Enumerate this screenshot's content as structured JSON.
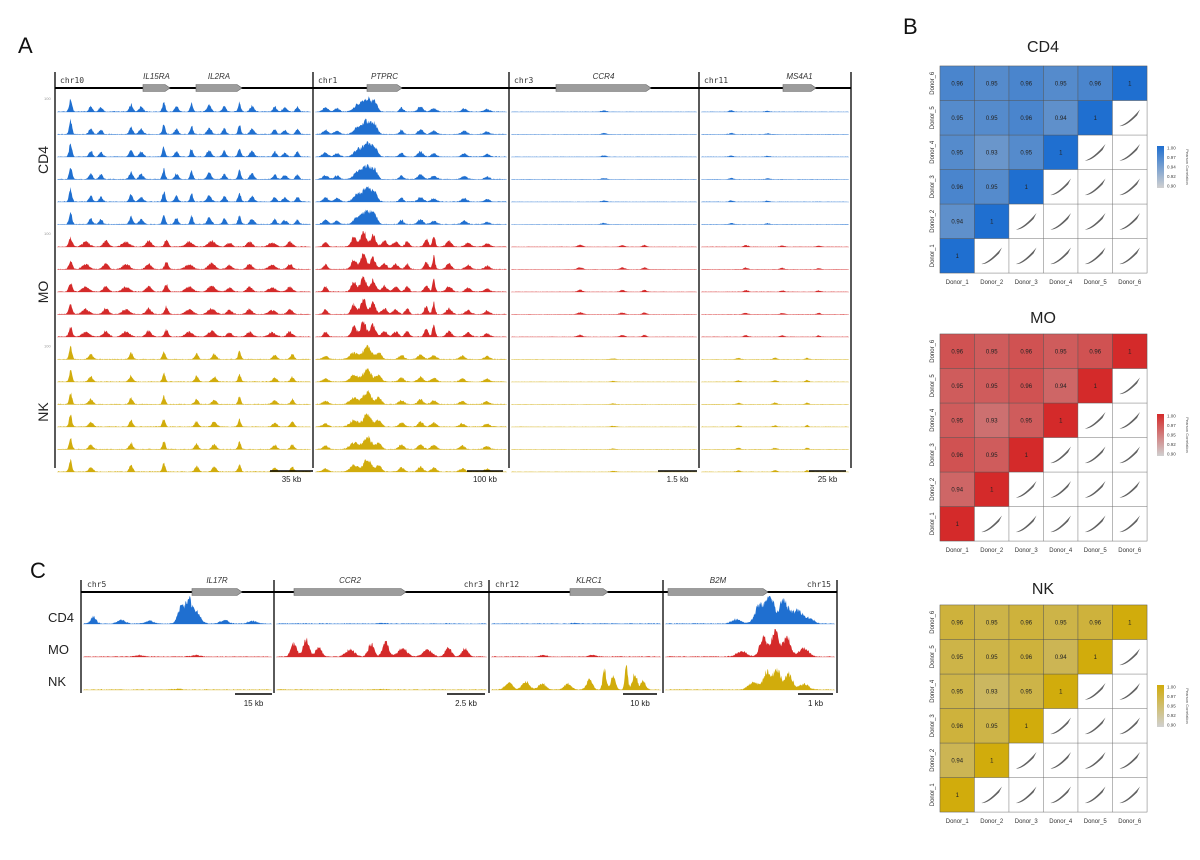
{
  "panel_letters": {
    "a": "A",
    "b": "B",
    "c": "C"
  },
  "colors": {
    "CD4": "#1f6fd0",
    "MO": "#d42a2a",
    "NK": "#d1ac0c",
    "track_line": "#000000",
    "gene_body": "#9c9c9c"
  },
  "panel_a": {
    "row_groups": [
      {
        "label": "CD4",
        "color_key": "CD4",
        "n_tracks": 6
      },
      {
        "label": "MO",
        "color_key": "MO",
        "n_tracks": 5
      },
      {
        "label": "NK",
        "color_key": "NK",
        "n_tracks": 6
      }
    ],
    "tiny_scale_label": "100",
    "loci": [
      {
        "chr": "chr10",
        "genes": [
          "IL15RA",
          "IL2RA"
        ],
        "scale_bar": "35 kb"
      },
      {
        "chr": "chr1",
        "genes": [
          "PTPRC"
        ],
        "scale_bar": "100 kb"
      },
      {
        "chr": "chr3",
        "genes": [
          "CCR4"
        ],
        "scale_bar": "1.5 kb"
      },
      {
        "chr": "chr11",
        "genes": [
          "MS4A1"
        ],
        "scale_bar": "25 kb"
      }
    ]
  },
  "panel_c": {
    "rows": [
      "CD4",
      "MO",
      "NK"
    ],
    "loci": [
      {
        "chr": "chr5",
        "chr_side": "left",
        "gene": "IL17R",
        "scale_bar": "15 kb"
      },
      {
        "chr": "chr3",
        "chr_side": "right",
        "gene": "CCR2",
        "scale_bar": "2.5 kb"
      },
      {
        "chr": "chr12",
        "chr_side": "left",
        "gene": "KLRC1",
        "scale_bar": "10 kb"
      },
      {
        "chr": "chr15",
        "chr_side": "right",
        "gene": "B2M",
        "scale_bar": "1 kb"
      }
    ]
  },
  "chart_data": [
    {
      "type": "heatmap",
      "title": "CD4",
      "color_key": "CD4",
      "donors": [
        "Donor_1",
        "Donor_2",
        "Donor_3",
        "Donor_4",
        "Donor_5",
        "Donor_6"
      ],
      "legend_title": "Pearson Correlation",
      "legend_ticks": [
        "1.00",
        "0.97",
        "0.94",
        "0.92",
        "0.90"
      ],
      "value_range": [
        0.9,
        1.0
      ],
      "lower_triangle": [
        [
          "1"
        ],
        [
          "0.94",
          "1"
        ],
        [
          "0.96",
          "0.95",
          "1"
        ],
        [
          "0.95",
          "0.93",
          "0.95",
          "1"
        ],
        [
          "0.95",
          "0.95",
          "0.96",
          "0.94",
          "1"
        ],
        [
          "0.96",
          "0.95",
          "0.96",
          "0.95",
          "0.96",
          "1"
        ]
      ],
      "upper_triangle": "scatter plots"
    },
    {
      "type": "heatmap",
      "title": "MO",
      "color_key": "MO",
      "donors": [
        "Donor_1",
        "Donor_2",
        "Donor_3",
        "Donor_4",
        "Donor_5",
        "Donor_6"
      ],
      "legend_title": "Pearson Correlation",
      "legend_ticks": [
        "1.00",
        "0.97",
        "0.95",
        "0.92",
        "0.90"
      ],
      "value_range": [
        0.9,
        1.0
      ],
      "lower_triangle": [
        [
          "1"
        ],
        [
          "0.94",
          "1"
        ],
        [
          "0.96",
          "0.95",
          "1"
        ],
        [
          "0.95",
          "0.93",
          "0.95",
          "1"
        ],
        [
          "0.95",
          "0.95",
          "0.96",
          "0.94",
          "1"
        ],
        [
          "0.96",
          "0.95",
          "0.96",
          "0.95",
          "0.96",
          "1"
        ]
      ],
      "upper_triangle": "scatter plots"
    },
    {
      "type": "heatmap",
      "title": "NK",
      "color_key": "NK",
      "donors": [
        "Donor_1",
        "Donor_2",
        "Donor_3",
        "Donor_4",
        "Donor_5",
        "Donor_6"
      ],
      "legend_title": "Pearson Correlation",
      "legend_ticks": [
        "1.00",
        "0.97",
        "0.95",
        "0.92",
        "0.90"
      ],
      "value_range": [
        0.9,
        1.0
      ],
      "lower_triangle": [
        [
          "1"
        ],
        [
          "0.94",
          "1"
        ],
        [
          "0.96",
          "0.95",
          "1"
        ],
        [
          "0.95",
          "0.93",
          "0.95",
          "1"
        ],
        [
          "0.95",
          "0.95",
          "0.96",
          "0.94",
          "1"
        ],
        [
          "0.96",
          "0.95",
          "0.96",
          "0.95",
          "0.96",
          "1"
        ]
      ],
      "upper_triangle": "scatter plots"
    }
  ]
}
